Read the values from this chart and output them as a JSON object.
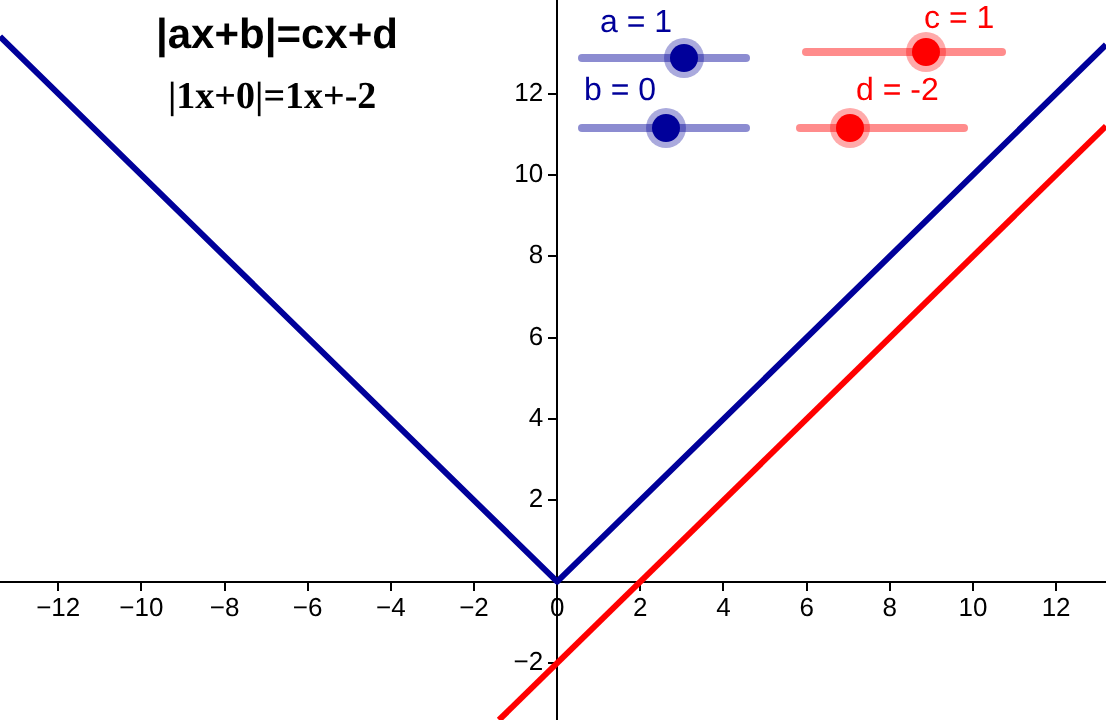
{
  "chart_data": {
    "type": "line",
    "title": "|ax+b|=cx+d",
    "subtitle": "|1x+0|=1x+-2",
    "annotations": [
      "a = 1",
      "b = 0",
      "c = 1",
      "d = -2"
    ],
    "series": [
      {
        "color": "#00009a",
        "x": [
          -13.4,
          0,
          13.2
        ],
        "values": [
          13.4,
          0,
          13.2
        ]
      },
      {
        "color": "#ff0000",
        "x": [
          -1.4,
          13.2
        ],
        "values": [
          -3.4,
          11.2
        ]
      }
    ],
    "xlim": [
      -13.4,
      13.2
    ],
    "ylim": [
      -3.4,
      14.3
    ],
    "xticks": [
      -12,
      -10,
      -8,
      -6,
      -4,
      -2,
      0,
      2,
      4,
      6,
      8,
      10,
      12
    ],
    "yticks": [
      -2,
      {
        "value": 0,
        "label": null
      },
      2,
      4,
      6,
      8,
      10,
      12
    ],
    "grid": false,
    "legend": false,
    "marker": "none",
    "line_style": "solid"
  }
}
